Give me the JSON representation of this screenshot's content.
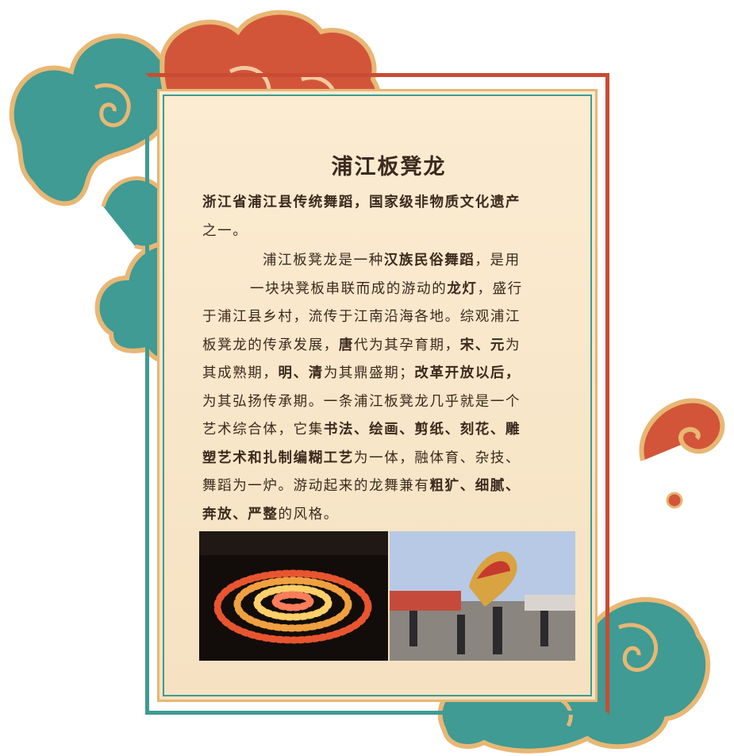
{
  "card": {
    "title": "浦江板凳龙",
    "intro_lines": [
      [
        {
          "t": "浙江省浦江县传统舞蹈，国家级非物质文化遗产",
          "b": true
        }
      ],
      [
        {
          "t": "之一。",
          "b": false
        }
      ]
    ],
    "body_lines": [
      [
        {
          "t": "浦江板凳龙是一种",
          "b": false
        },
        {
          "t": "汉族民俗舞蹈",
          "b": true
        },
        {
          "t": "，是用",
          "b": false
        }
      ],
      [
        {
          "t": "一块块凳板串联而成的游动的",
          "b": false
        },
        {
          "t": "龙灯",
          "b": true
        },
        {
          "t": "，盛行",
          "b": false
        }
      ],
      [
        {
          "t": "于浦江县乡村，流传于江南沿海各地。综观浦江",
          "b": false
        }
      ],
      [
        {
          "t": "板凳龙的传承发展，",
          "b": false
        },
        {
          "t": "唐",
          "b": true
        },
        {
          "t": "代为其孕育期，",
          "b": false
        },
        {
          "t": "宋、元",
          "b": true
        },
        {
          "t": "为",
          "b": false
        }
      ],
      [
        {
          "t": "其成熟期，",
          "b": false
        },
        {
          "t": "明、清",
          "b": true
        },
        {
          "t": "为其鼎盛期；",
          "b": false
        },
        {
          "t": "改革开放以后，",
          "b": true
        }
      ],
      [
        {
          "t": "为其弘扬传承期。一条浦江板凳龙几乎就是一个",
          "b": false
        }
      ],
      [
        {
          "t": "艺术综合体，它集",
          "b": false
        },
        {
          "t": "书法、绘画、剪纸、刻花、雕",
          "b": true
        }
      ],
      [
        {
          "t": "塑艺术和扎制编糊工艺",
          "b": true
        },
        {
          "t": "为一体，融体育、杂技、",
          "b": false
        }
      ],
      [
        {
          "t": "舞蹈为一炉。游动起来的龙舞兼有",
          "b": false
        },
        {
          "t": "粗犷、细腻、",
          "b": true
        }
      ],
      [
        {
          "t": "奔放、严整",
          "b": true
        },
        {
          "t": "的风格。",
          "b": false
        }
      ]
    ]
  },
  "colors": {
    "teal": "#3f9b93",
    "red": "#d2553a",
    "gold": "#e8b774",
    "paper": "#fbecd2",
    "text": "#3b2a1d"
  }
}
